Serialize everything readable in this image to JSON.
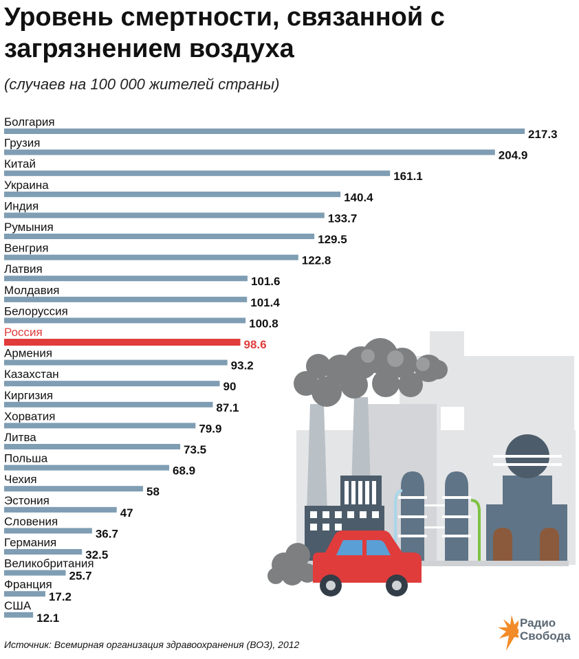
{
  "header": {
    "title": "Уровень смертности, связанной с загрязнением воздуха",
    "subtitle": "(случаев на 100 000 жителей страны)"
  },
  "chart_data": {
    "type": "bar",
    "orientation": "horizontal",
    "title": "Уровень смертности, связанной с загрязнением воздуха",
    "subtitle": "(случаев на 100 000 жителей страны)",
    "categories": [
      "Болгария",
      "Грузия",
      "Китай",
      "Украина",
      "Индия",
      "Румыния",
      "Венгрия",
      "Латвия",
      "Молдавия",
      "Белоруссия",
      "Россия",
      "Армения",
      "Казахстан",
      "Киргизия",
      "Хорватия",
      "Литва",
      "Польша",
      "Чехия",
      "Эстония",
      "Словения",
      "Германия",
      "Великобритания",
      "Франция",
      "США"
    ],
    "values": [
      217.3,
      204.9,
      161.1,
      140.4,
      133.7,
      129.5,
      122.8,
      101.6,
      101.4,
      100.8,
      98.6,
      93.2,
      90,
      87.1,
      79.9,
      73.5,
      68.9,
      58,
      47,
      36.7,
      32.5,
      25.7,
      17.2,
      12.1
    ],
    "value_labels": [
      "217.3",
      "204.9",
      "161.1",
      "140.4",
      "133.7",
      "129.5",
      "122.8",
      "101.6",
      "101.4",
      "100.8",
      "98.6",
      "93.2",
      "90",
      "87.1",
      "79.9",
      "73.5",
      "68.9",
      "58",
      "47",
      "36.7",
      "32.5",
      "25.7",
      "17.2",
      "12.1"
    ],
    "highlight_category": "Россия",
    "grid": false,
    "legend": "none"
  },
  "colors": {
    "bar": "#7f9db3",
    "highlight": "#e03c3c",
    "smoke": "#7d7f80",
    "factory_bg": "#e4e5e7",
    "factory_mid": "#cfd1d4",
    "building": "#4c5c6a",
    "tank": "#5f7486",
    "car": "#e03c3c",
    "logo_orange": "#f28c28",
    "logo_text": "#5a6773"
  },
  "footer": {
    "source": "Источник: Всемирная организация здравоохранения (ВОЗ), 2012"
  },
  "logo": {
    "line1": "Радио",
    "line2": "Свобода",
    "icon": "flame-logo-icon"
  },
  "illustration": {
    "icon": "factory-car-pollution-illustration"
  }
}
